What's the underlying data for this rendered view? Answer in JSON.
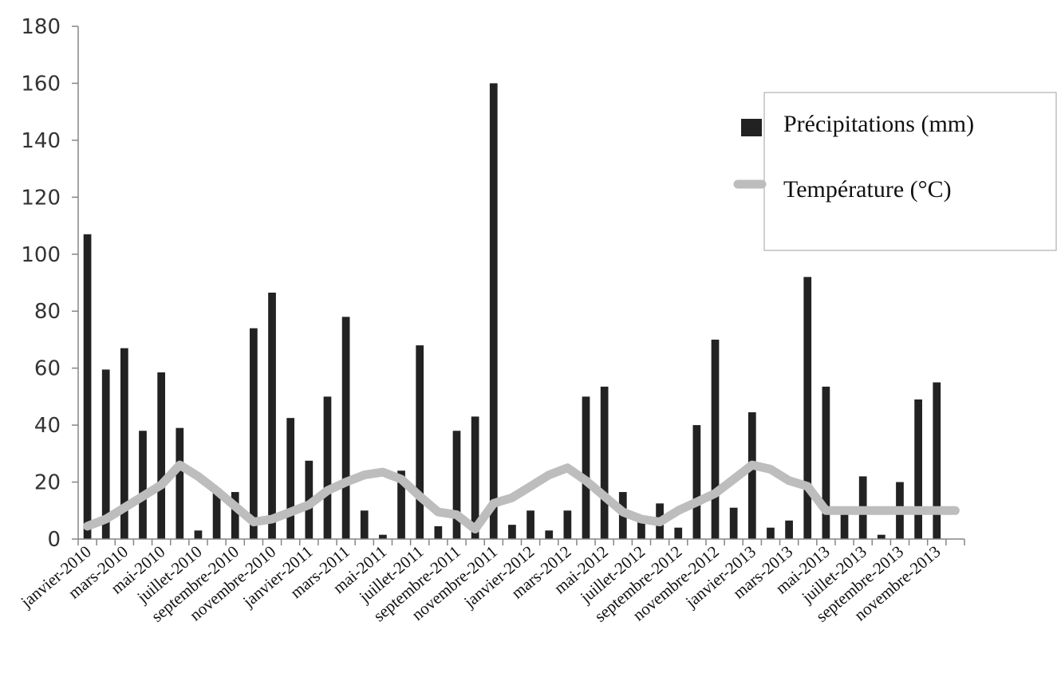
{
  "chart_data": {
    "type": "bar",
    "title": "",
    "xlabel": "",
    "ylabel": "",
    "ylim": [
      0,
      180
    ],
    "yticks": [
      0,
      20,
      40,
      60,
      80,
      100,
      120,
      140,
      160,
      180
    ],
    "grid": false,
    "legend_position": "top-right",
    "categories": [
      "janvier-2010",
      "février-2010",
      "mars-2010",
      "avril-2010",
      "mai-2010",
      "juin-2010",
      "juillet-2010",
      "août-2010",
      "septembre-2010",
      "octobre-2010",
      "novembre-2010",
      "décembre-2010",
      "janvier-2011",
      "février-2011",
      "mars-2011",
      "avril-2011",
      "mai-2011",
      "juin-2011",
      "juillet-2011",
      "août-2011",
      "septembre-2011",
      "octobre-2011",
      "novembre-2011",
      "décembre-2011",
      "janvier-2012",
      "février-2012",
      "mars-2012",
      "avril-2012",
      "mai-2012",
      "juin-2012",
      "juillet-2012",
      "août-2012",
      "septembre-2012",
      "octobre-2012",
      "novembre-2012",
      "décembre-2012",
      "janvier-2013",
      "février-2013",
      "mars-2013",
      "avril-2013",
      "mai-2013",
      "juin-2013",
      "juillet-2013",
      "août-2013",
      "septembre-2013",
      "octobre-2013",
      "novembre-2013",
      "décembre-2013"
    ],
    "tick_labels": [
      "janvier-2010",
      "mars-2010",
      "mai-2010",
      "juillet-2010",
      "septembre-2010",
      "novembre-2010",
      "janvier-2011",
      "mars-2011",
      "mai-2011",
      "juillet-2011",
      "septembre-2011",
      "novembre-2011",
      "janvier-2012",
      "mars-2012",
      "mai-2012",
      "juillet-2012",
      "septembre-2012",
      "novembre-2012",
      "janvier-2013",
      "mars-2013",
      "mai-2013",
      "juillet-2013",
      "septembre-2013",
      "novembre-2013"
    ],
    "series": [
      {
        "name": "Précipitations (mm)",
        "type": "bar",
        "color": "#222222",
        "values": [
          107,
          59.5,
          67,
          38,
          58.5,
          39,
          3,
          17,
          16.5,
          74,
          86.5,
          42.5,
          27.5,
          50,
          78,
          10,
          1.5,
          24,
          68,
          4.5,
          38,
          43,
          160,
          5,
          10,
          3,
          10,
          50,
          53.5,
          16.5,
          7,
          12.5,
          4,
          40,
          70,
          11,
          44.5,
          4,
          6.5,
          92,
          53.5,
          11,
          22,
          1.5,
          20,
          49,
          55,
          0
        ]
      },
      {
        "name": "Température (°C)",
        "type": "line",
        "color": "#bdbdbd",
        "values": [
          4.5,
          7,
          11,
          15,
          19,
          26,
          22,
          17,
          11.5,
          6,
          7,
          9.5,
          12,
          17,
          20,
          22.5,
          23.5,
          21,
          15,
          9.5,
          8.5,
          3.5,
          12.5,
          14.5,
          18.5,
          22.5,
          25,
          20.5,
          15,
          9.5,
          7,
          6,
          10,
          13,
          16,
          21,
          26,
          24.5,
          20.5,
          18.5,
          10,
          10,
          10,
          10,
          10,
          10,
          10,
          10
        ]
      }
    ]
  }
}
